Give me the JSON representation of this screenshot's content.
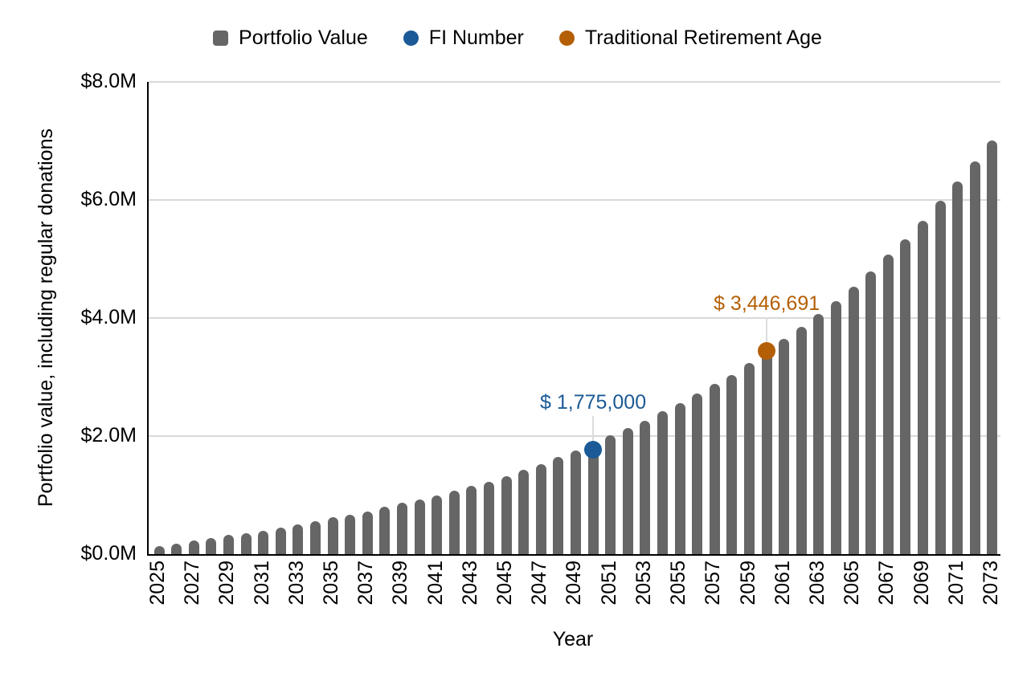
{
  "legend": {
    "items": [
      {
        "label": "Portfolio Value",
        "color": "#666666",
        "shape": "square",
        "name": "portfolio-value"
      },
      {
        "label": "FI Number",
        "color": "#1B5A96",
        "shape": "circle",
        "name": "fi-number"
      },
      {
        "label": "Traditional Retirement Age",
        "color": "#B45F06",
        "shape": "circle",
        "name": "traditional-retirement-age"
      }
    ]
  },
  "chart_data": {
    "type": "bar",
    "title": "",
    "xlabel": "Year",
    "ylabel": "Portfolio value, including regular donations",
    "units": "millions_of_dollars",
    "ylim": [
      0,
      8
    ],
    "grid": "horizontal",
    "legend_position": "top",
    "bar_color": "#666666",
    "categories": [
      2025,
      2026,
      2027,
      2028,
      2029,
      2030,
      2031,
      2032,
      2033,
      2034,
      2035,
      2036,
      2037,
      2038,
      2039,
      2040,
      2041,
      2042,
      2043,
      2044,
      2045,
      2046,
      2047,
      2048,
      2049,
      2050,
      2051,
      2052,
      2053,
      2054,
      2055,
      2056,
      2057,
      2058,
      2059,
      2060,
      2061,
      2062,
      2063,
      2064,
      2065,
      2066,
      2067,
      2068,
      2069,
      2070,
      2071,
      2072,
      2073
    ],
    "series": [
      {
        "name": "Portfolio Value",
        "values_millions": [
          0.14,
          0.18,
          0.23,
          0.27,
          0.32,
          0.36,
          0.4,
          0.45,
          0.5,
          0.56,
          0.62,
          0.67,
          0.72,
          0.8,
          0.87,
          0.93,
          1.0,
          1.08,
          1.16,
          1.23,
          1.32,
          1.43,
          1.53,
          1.64,
          1.75,
          1.89,
          2.02,
          2.13,
          2.26,
          2.42,
          2.56,
          2.72,
          2.88,
          3.03,
          3.24,
          3.45,
          3.65,
          3.85,
          4.07,
          4.28,
          4.53,
          4.79,
          5.07,
          5.34,
          5.64,
          5.98,
          6.31,
          6.65,
          7.01
        ]
      }
    ],
    "yticks": [
      {
        "value": 0,
        "label": "$0.0M"
      },
      {
        "value": 2,
        "label": "$2.0M"
      },
      {
        "value": 4,
        "label": "$4.0M"
      },
      {
        "value": 6,
        "label": "$6.0M"
      },
      {
        "value": 8,
        "label": "$8.0M"
      }
    ],
    "xtick_labels": [
      "2025",
      "2027",
      "2029",
      "2031",
      "2033",
      "2035",
      "2037",
      "2039",
      "2041",
      "2043",
      "2045",
      "2047",
      "2049",
      "2051",
      "2053",
      "2055",
      "2057",
      "2059",
      "2061",
      "2063",
      "2065",
      "2067",
      "2069",
      "2071",
      "2073"
    ],
    "annotations": [
      {
        "name": "fi-number",
        "year": 2050,
        "value_millions": 1.775,
        "label": "$ 1,775,000",
        "color": "#1B5A96"
      },
      {
        "name": "traditional-retirement-age",
        "year": 2060,
        "value_millions": 3.446691,
        "label": "$ 3,446,691",
        "color": "#B45F06"
      }
    ]
  },
  "colors": {
    "bar_gray": "#666666",
    "fi_blue": "#1B5A96",
    "retirement_orange": "#B45F06",
    "gridline": "#d9d9d9",
    "axis_line": "#000000",
    "text": "#000000"
  }
}
